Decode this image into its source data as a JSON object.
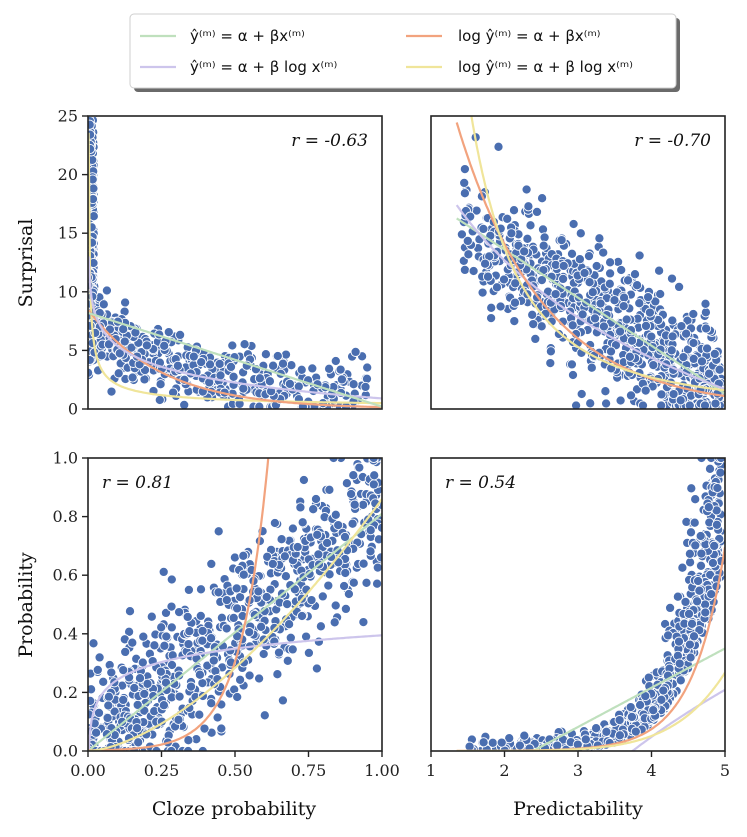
{
  "chart_data": {
    "type": "scatter",
    "legend": {
      "placement": "top-center",
      "entries": [
        {
          "key": "lin",
          "color": "#bfe0bd",
          "text": "ŷ⁽ᵐ⁾ = α + βx⁽ᵐ⁾"
        },
        {
          "key": "loglin",
          "color": "#cdc5ec",
          "text": "ŷ⁽ᵐ⁾ = α + β log x⁽ᵐ⁾"
        },
        {
          "key": "exp",
          "color": "#f2a37e",
          "text": "log ŷ⁽ᵐ⁾ = α + βx⁽ᵐ⁾"
        },
        {
          "key": "pow",
          "color": "#f0e59a",
          "text": "log ŷ⁽ᵐ⁾ = α + β log x⁽ᵐ⁾"
        }
      ]
    },
    "row_labels": [
      "Surprisal",
      "Probability"
    ],
    "col_labels": [
      "Cloze probability",
      "Predictability"
    ],
    "panels": [
      {
        "id": "tl",
        "xlim": [
          0,
          1
        ],
        "ylim": [
          0,
          25
        ],
        "yticks": [
          "0",
          "5",
          "10",
          "15",
          "20",
          "25"
        ],
        "xticks": [],
        "r_text": "r = -0.63",
        "r_pos": "top-right",
        "fits": [
          {
            "key": "pow",
            "a": 0.5,
            "b": -0.62,
            "kind": "power"
          },
          {
            "key": "exp",
            "a": 8.5,
            "b": -4.0,
            "kind": "exp"
          },
          {
            "key": "loglin",
            "a": 0.9,
            "b": -1.95,
            "kind": "loglin"
          },
          {
            "key": "lin",
            "a": 8.2,
            "b": -8.0,
            "kind": "lin"
          }
        ]
      },
      {
        "id": "tr",
        "xlim": [
          1,
          5
        ],
        "ylim": [
          0,
          25
        ],
        "yticks": [],
        "xticks": [],
        "r_text": "r = -0.70",
        "r_pos": "top-right",
        "fits": [
          {
            "key": "lin",
            "a": 21.8,
            "b": -4.1,
            "kind": "lin"
          },
          {
            "key": "loglin",
            "a": 21.0,
            "b": -12.0,
            "kind": "loglin"
          },
          {
            "key": "exp",
            "a": 77,
            "b": -0.85,
            "kind": "exp"
          },
          {
            "key": "pow",
            "a": 70,
            "b": -2.35,
            "kind": "power"
          }
        ]
      },
      {
        "id": "bl",
        "xlim": [
          0,
          1
        ],
        "ylim": [
          0,
          1
        ],
        "yticks": [
          "0.0",
          "0.2",
          "0.4",
          "0.6",
          "0.8",
          "1.0"
        ],
        "xticks": [
          "0.00",
          "0.25",
          "0.50",
          "0.75",
          "1.00"
        ],
        "r_text": "r = 0.81",
        "r_pos": "top-left",
        "fits": [
          {
            "key": "lin",
            "a": 0.0,
            "b": 0.81,
            "kind": "lin"
          },
          {
            "key": "loglin",
            "a": 0.395,
            "b": 0.066,
            "kind": "loglin"
          },
          {
            "key": "exp",
            "a": 0.0016,
            "b": 10.5,
            "kind": "exp"
          },
          {
            "key": "pow",
            "a": 0.86,
            "b": 1.6,
            "kind": "power"
          }
        ]
      },
      {
        "id": "br",
        "xlim": [
          1,
          5
        ],
        "ylim": [
          0,
          1
        ],
        "yticks": [],
        "xticks": [
          "1",
          "2",
          "3",
          "4",
          "5"
        ],
        "r_text": "r = 0.54",
        "r_pos": "top-left",
        "fits": [
          {
            "key": "lin",
            "a": -0.32,
            "b": 0.134,
            "kind": "lin"
          },
          {
            "key": "loglin",
            "a": -0.95,
            "b": 0.72,
            "kind": "loglin"
          },
          {
            "key": "exp",
            "a": 1e-05,
            "b": 2.23,
            "kind": "exp"
          },
          {
            "key": "pow",
            "a": 1.8e-06,
            "b": 7.4,
            "kind": "power"
          }
        ]
      }
    ]
  }
}
